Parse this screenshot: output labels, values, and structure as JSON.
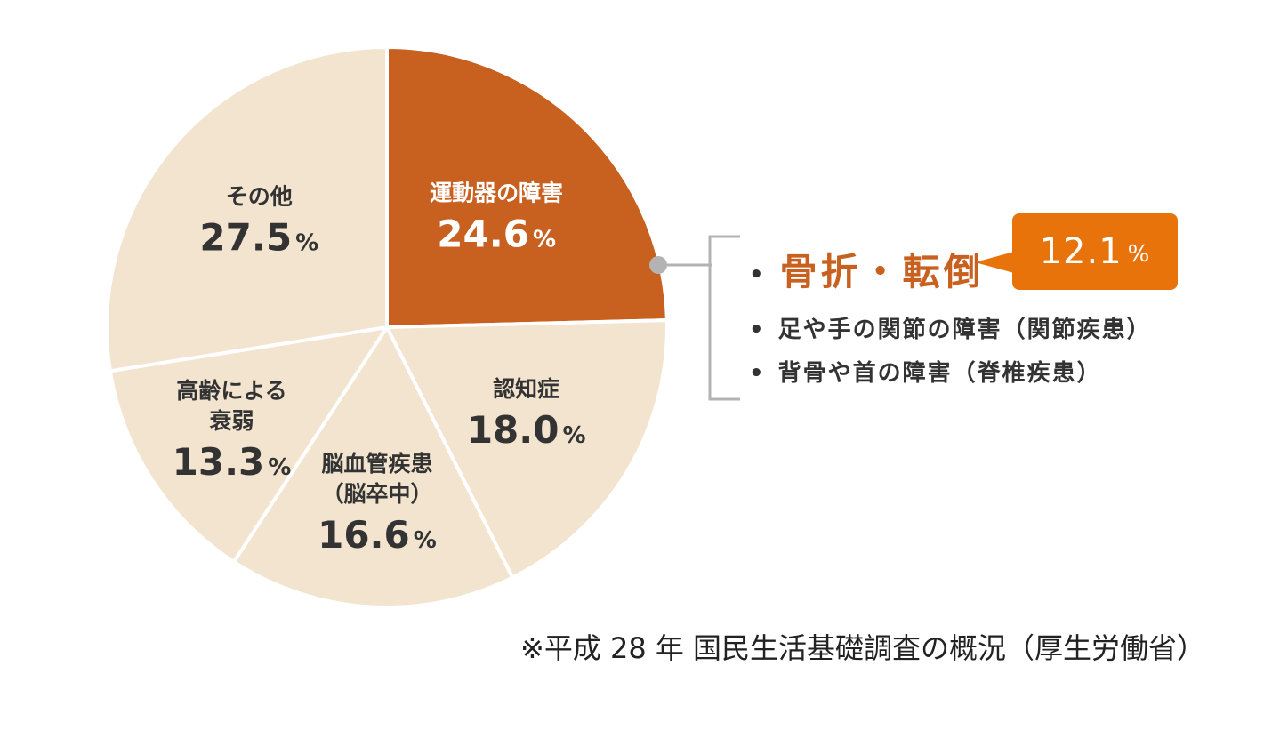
{
  "chart_data": {
    "type": "pie",
    "unit": "%",
    "slices": [
      {
        "label": "運動器の障害",
        "label_lines": [
          "運動器の障害"
        ],
        "value": 24.6,
        "value_text": "24.6",
        "color": "#c8601f",
        "text_color": "#ffffff"
      },
      {
        "label": "認知症",
        "label_lines": [
          "認知症"
        ],
        "value": 18.0,
        "value_text": "18.0",
        "color": "#f2e4cf",
        "text_color": "#333333"
      },
      {
        "label": "脳血管疾患（脳卒中）",
        "label_lines": [
          "脳血管疾患",
          "（脳卒中）"
        ],
        "value": 16.6,
        "value_text": "16.6",
        "color": "#f2e4cf",
        "text_color": "#333333"
      },
      {
        "label": "高齢による衰弱",
        "label_lines": [
          "高齢による",
          "衰弱"
        ],
        "value": 13.3,
        "value_text": "13.3",
        "color": "#f2e4cf",
        "text_color": "#333333"
      },
      {
        "label": "その他",
        "label_lines": [
          "その他"
        ],
        "value": 27.5,
        "value_text": "27.5",
        "color": "#f2e4cf",
        "text_color": "#333333"
      }
    ]
  },
  "breakdown": {
    "items": [
      {
        "text": "骨折・転倒",
        "highlight": true
      },
      {
        "text": "足や手の関節の障害（関節疾患）",
        "highlight": false
      },
      {
        "text": "背骨や首の障害（脊椎疾患）",
        "highlight": false
      }
    ],
    "bullet": "•",
    "callout": {
      "value": "12.1",
      "unit": "%",
      "color": "#e8730a"
    },
    "bracket_color": "#b3b3b3"
  },
  "footnote": "※平成 28 年 国民生活基礎調査の概況（厚生労働省）"
}
